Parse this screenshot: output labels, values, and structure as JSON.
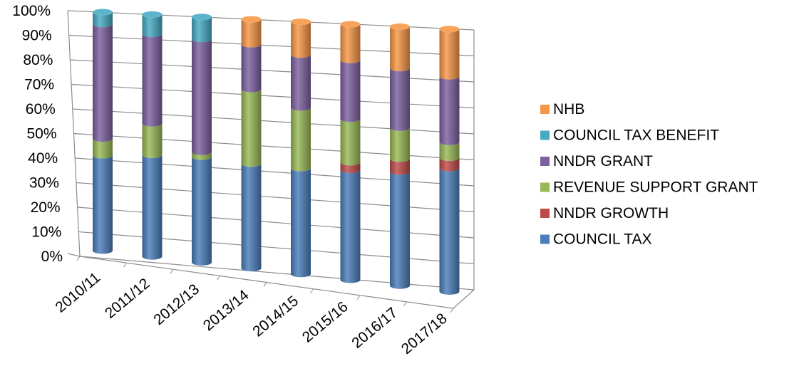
{
  "chart_data": {
    "type": "bar",
    "stacked": "percent",
    "style": "3d-cylinder",
    "categories": [
      "2010/11",
      "2011/12",
      "2012/13",
      "2013/14",
      "2014/15",
      "2015/16",
      "2016/17",
      "2017/18"
    ],
    "series": [
      {
        "name": "COUNCIL TAX",
        "color": "#4a7ebb",
        "values": [
          40,
          42,
          43,
          42,
          42,
          43,
          44,
          47
        ]
      },
      {
        "name": "NNDR GROWTH",
        "color": "#be4b48",
        "values": [
          0,
          0,
          0,
          0,
          0,
          3,
          5,
          4
        ]
      },
      {
        "name": "REVENUE SUPPORT GRANT",
        "color": "#98b954",
        "values": [
          7,
          13,
          2,
          30,
          24,
          17,
          12,
          6
        ]
      },
      {
        "name": "NNDR GRANT",
        "color": "#7d60a0",
        "values": [
          48,
          37,
          46,
          18,
          21,
          23,
          23,
          25
        ]
      },
      {
        "name": "COUNCIL TAX BENEFIT",
        "color": "#46aac4",
        "values": [
          5,
          8,
          9,
          0,
          0,
          0,
          0,
          0
        ]
      },
      {
        "name": "NHB",
        "color": "#f79646",
        "values": [
          0,
          0,
          0,
          10,
          13,
          14,
          16,
          18
        ]
      }
    ],
    "legend_order": [
      "NHB",
      "COUNCIL TAX BENEFIT",
      "NNDR GRANT",
      "REVENUE SUPPORT GRANT",
      "NNDR GROWTH",
      "COUNCIL TAX"
    ],
    "y_ticks": [
      "0%",
      "10%",
      "20%",
      "30%",
      "40%",
      "50%",
      "60%",
      "70%",
      "80%",
      "90%",
      "100%"
    ],
    "ylim": [
      0,
      100
    ],
    "grid": true,
    "legend_position": "right"
  }
}
